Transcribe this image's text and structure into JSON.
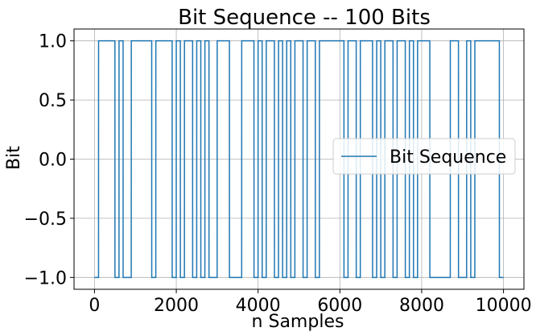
{
  "chart_data": {
    "type": "line",
    "title": "Bit Sequence -- 100 Bits",
    "xlabel": "n Samples",
    "ylabel": "Bit",
    "xlim": [
      -500,
      10500
    ],
    "ylim": [
      -1.1,
      1.1
    ],
    "xticks": [
      0,
      2000,
      4000,
      6000,
      8000,
      10000
    ],
    "xtick_labels": [
      "0",
      "2000",
      "4000",
      "6000",
      "8000",
      "10000"
    ],
    "yticks": [
      1.0,
      0.5,
      0.0,
      -0.5,
      -1.0
    ],
    "ytick_labels": [
      "1.0",
      "0.5",
      "0.0",
      "−0.5",
      "−1.0"
    ],
    "grid": true,
    "legend_position": "center-right",
    "color": "#1f77b4",
    "series": [
      {
        "name": "Bit Sequence",
        "step": 100,
        "bits": [
          -1,
          1,
          1,
          1,
          1,
          -1,
          1,
          -1,
          -1,
          1,
          1,
          1,
          1,
          1,
          -1,
          1,
          1,
          1,
          1,
          -1,
          1,
          -1,
          1,
          1,
          -1,
          1,
          -1,
          1,
          -1,
          -1,
          1,
          1,
          1,
          -1,
          -1,
          -1,
          1,
          1,
          1,
          -1,
          1,
          -1,
          1,
          1,
          -1,
          1,
          -1,
          1,
          -1,
          1,
          1,
          -1,
          1,
          1,
          -1,
          1,
          1,
          1,
          1,
          1,
          1,
          -1,
          1,
          1,
          -1,
          1,
          1,
          1,
          -1,
          1,
          -1,
          1,
          1,
          -1,
          1,
          1,
          -1,
          1,
          -1,
          1,
          1,
          1,
          -1,
          -1,
          -1,
          -1,
          -1,
          1,
          1,
          -1,
          -1,
          1,
          -1,
          1,
          1,
          1,
          1,
          1,
          1,
          -1
        ]
      }
    ]
  }
}
